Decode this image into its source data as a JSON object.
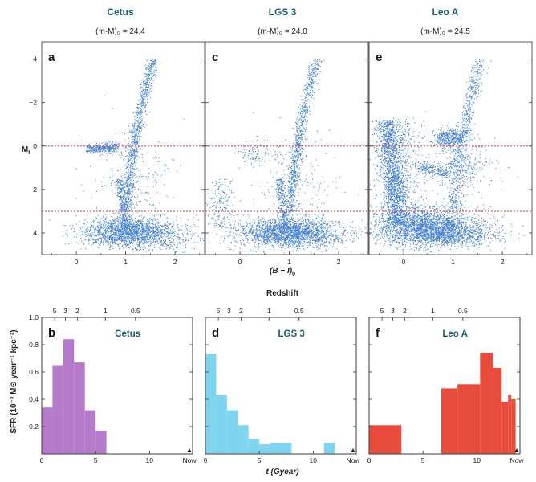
{
  "figure": {
    "redshift_label": "Redshift",
    "cmd_ylabel_main": "M",
    "cmd_ylabel_sub": "I",
    "cmd_xlabel": "(B − I)",
    "cmd_xlabel_sub": "0",
    "sfr_ylabel": "SFR (10⁻³ M⊙ year⁻¹ kpc⁻²)",
    "sfr_xlabel": "t (Gyear)",
    "now_label": "Now",
    "colors": {
      "title": "#1a5f6e",
      "points": "#2a6fca",
      "ref_line": "#d94848"
    }
  },
  "chart_data": [
    {
      "type": "scatter",
      "panel_letter": "a",
      "galaxy": "Cetus",
      "distance_modulus": "(m-M)₀ = 24.4",
      "xlim": [
        -0.7,
        2.6
      ],
      "ylim": [
        5,
        -4.8
      ],
      "x_ticks": [
        0,
        1,
        2
      ],
      "y_ticks": [
        -4,
        -2,
        0,
        2,
        4
      ],
      "reference_lines_y": [
        0,
        3
      ],
      "reference_line_style": "dotted",
      "morphology": "red giant branch, red clump/horizontal branch near M_I≈0, dense main-sequence turnoff near M_I≈4"
    },
    {
      "type": "scatter",
      "panel_letter": "c",
      "galaxy": "LGS 3",
      "distance_modulus": "(m-M)₀ = 24.0",
      "xlim": [
        -0.7,
        2.6
      ],
      "ylim": [
        5,
        -4.8
      ],
      "x_ticks": [
        0,
        1,
        2
      ],
      "y_ticks": [
        -4,
        -2,
        0,
        2,
        4
      ],
      "reference_lines_y": [
        0,
        3
      ],
      "reference_line_style": "dotted",
      "morphology": "red giant branch, sparse horizontal branch, dense main-sequence turnoff near M_I≈4"
    },
    {
      "type": "scatter",
      "panel_letter": "e",
      "galaxy": "Leo A",
      "distance_modulus": "(m-M)₀ = 24.5",
      "xlim": [
        -0.7,
        2.6
      ],
      "ylim": [
        5,
        -4.8
      ],
      "x_ticks": [
        0,
        1,
        2
      ],
      "y_ticks": [
        -4,
        -2,
        0,
        2,
        4
      ],
      "reference_lines_y": [
        0,
        3
      ],
      "reference_line_style": "dotted",
      "morphology": "young blue main sequence, red clump near M_I≈-0.5, red giant branch, dense population near M_I≈4"
    },
    {
      "type": "bar",
      "panel_letter": "b",
      "galaxy": "Cetus",
      "xlim": [
        0,
        14
      ],
      "ylim": [
        0,
        1.0
      ],
      "x_ticks": [
        0,
        5,
        10
      ],
      "y_ticks": [
        0.2,
        0.4,
        0.6,
        0.8,
        1.0
      ],
      "redshift_ticks": [
        {
          "z": "5",
          "t": 1.2
        },
        {
          "z": "3",
          "t": 2.2
        },
        {
          "z": "2",
          "t": 3.3
        },
        {
          "z": "1",
          "t": 5.9
        },
        {
          "z": "0.5",
          "t": 8.7
        }
      ],
      "color": "#b57ac9",
      "bins": [
        {
          "x0": 0.0,
          "x1": 1.0,
          "v": 0.34
        },
        {
          "x0": 1.0,
          "x1": 2.0,
          "v": 0.65
        },
        {
          "x0": 2.0,
          "x1": 3.0,
          "v": 0.84
        },
        {
          "x0": 3.0,
          "x1": 4.0,
          "v": 0.67
        },
        {
          "x0": 4.0,
          "x1": 5.0,
          "v": 0.32
        },
        {
          "x0": 5.0,
          "x1": 6.0,
          "v": 0.17
        }
      ]
    },
    {
      "type": "bar",
      "panel_letter": "d",
      "galaxy": "LGS 3",
      "xlim": [
        0,
        14
      ],
      "ylim": [
        0,
        1.0
      ],
      "x_ticks": [
        0,
        5,
        10
      ],
      "y_ticks": [
        0.2,
        0.4,
        0.6,
        0.8,
        1.0
      ],
      "redshift_ticks": [
        {
          "z": "5",
          "t": 1.2
        },
        {
          "z": "3",
          "t": 2.2
        },
        {
          "z": "2",
          "t": 3.3
        },
        {
          "z": "1",
          "t": 5.9
        },
        {
          "z": "0.5",
          "t": 8.7
        }
      ],
      "color": "#7fd4ef",
      "bins": [
        {
          "x0": 0.0,
          "x1": 1.0,
          "v": 0.73
        },
        {
          "x0": 1.0,
          "x1": 2.0,
          "v": 0.43
        },
        {
          "x0": 2.0,
          "x1": 3.0,
          "v": 0.32
        },
        {
          "x0": 3.0,
          "x1": 4.0,
          "v": 0.21
        },
        {
          "x0": 4.0,
          "x1": 5.0,
          "v": 0.11
        },
        {
          "x0": 5.0,
          "x1": 6.0,
          "v": 0.07
        },
        {
          "x0": 6.0,
          "x1": 7.0,
          "v": 0.08
        },
        {
          "x0": 7.0,
          "x1": 8.0,
          "v": 0.08
        },
        {
          "x0": 11.0,
          "x1": 12.0,
          "v": 0.08
        }
      ]
    },
    {
      "type": "bar",
      "panel_letter": "f",
      "galaxy": "Leo A",
      "xlim": [
        0,
        14
      ],
      "ylim": [
        0,
        1.0
      ],
      "x_ticks": [
        0,
        5,
        10
      ],
      "y_ticks": [
        0.2,
        0.4,
        0.6,
        0.8,
        1.0
      ],
      "redshift_ticks": [
        {
          "z": "5",
          "t": 1.2
        },
        {
          "z": "3",
          "t": 2.2
        },
        {
          "z": "2",
          "t": 3.3
        },
        {
          "z": "1",
          "t": 5.9
        },
        {
          "z": "0.5",
          "t": 8.7
        }
      ],
      "color": "#e84c3d",
      "bins": [
        {
          "x0": 0.0,
          "x1": 3.0,
          "v": 0.21
        },
        {
          "x0": 6.7,
          "x1": 8.2,
          "v": 0.48
        },
        {
          "x0": 8.2,
          "x1": 10.3,
          "v": 0.51
        },
        {
          "x0": 10.3,
          "x1": 11.5,
          "v": 0.74
        },
        {
          "x0": 11.5,
          "x1": 12.3,
          "v": 0.63
        },
        {
          "x0": 12.3,
          "x1": 12.9,
          "v": 0.38
        },
        {
          "x0": 12.9,
          "x1": 13.2,
          "v": 0.43
        },
        {
          "x0": 13.2,
          "x1": 13.6,
          "v": 0.4
        }
      ]
    }
  ]
}
